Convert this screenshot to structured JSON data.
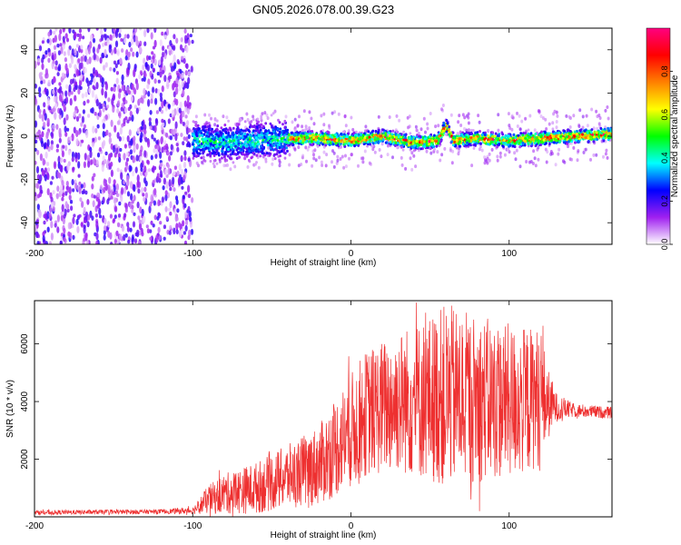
{
  "title": "GN05.2026.078.00.39.G23",
  "colors": {
    "snr_line": "#ee3030",
    "spectral_marks": "#8a2be2"
  },
  "chart_data": [
    {
      "type": "heatmap",
      "title": "GN05.2026.078.00.39.G23",
      "xlabel": "Height of straight line (km)",
      "ylabel": "Frequency (Hz)",
      "xlim": [
        -200,
        165
      ],
      "ylim": [
        -50,
        50
      ],
      "xticks": [
        -200,
        -100,
        0,
        100
      ],
      "yticks": [
        -40,
        -20,
        0,
        20,
        40
      ],
      "colorbar": {
        "label": "Normalized spectral amplitude",
        "range": [
          0.0,
          1.0
        ],
        "ticks": [
          0.0,
          0.2,
          0.4,
          0.6,
          0.8
        ],
        "tick_labels": [
          "0.0",
          "0.2",
          "0.4",
          "0.6",
          "0.8"
        ],
        "colors": [
          "#ffffff",
          "#a020f0",
          "#0000ff",
          "#00ffff",
          "#00ff00",
          "#ffff00",
          "#ff8000",
          "#ff0000",
          "#ff0080"
        ]
      },
      "regions": [
        {
          "x_range": [
            -200,
            -100
          ],
          "pattern": "diffuse noise across all frequencies",
          "amplitude": 0.15
        },
        {
          "x_range": [
            -100,
            -40
          ],
          "center_hz": 0,
          "spread_hz": 8,
          "amplitude": 0.35
        },
        {
          "x_range": [
            -40,
            165
          ],
          "center_hz": 0,
          "spread_hz": 3,
          "amplitude": 0.7
        }
      ],
      "center_curve": {
        "x": [
          -100,
          -80,
          -60,
          -40,
          -20,
          0,
          20,
          40,
          55,
          60,
          65,
          80,
          100,
          120,
          140,
          165
        ],
        "y": [
          -2,
          -3,
          -2,
          -1,
          -1,
          -2,
          0,
          -3,
          -2,
          5,
          -2,
          -1,
          -2,
          -1,
          0,
          1
        ]
      }
    },
    {
      "type": "line",
      "xlabel": "Height of straight line (km)",
      "ylabel": "SNR (10 * v/v)",
      "xlim": [
        -200,
        165
      ],
      "ylim": [
        0,
        7500
      ],
      "xticks": [
        -200,
        -100,
        0,
        100
      ],
      "yticks": [
        2000,
        4000,
        6000
      ],
      "envelope": {
        "x": [
          -200,
          -120,
          -100,
          -90,
          -80,
          -60,
          -40,
          -20,
          -10,
          0,
          10,
          30,
          50,
          60,
          80,
          100,
          110,
          120,
          125,
          130,
          140,
          165
        ],
        "mean": [
          150,
          180,
          220,
          600,
          800,
          1000,
          1400,
          1800,
          2400,
          3000,
          3600,
          4000,
          4100,
          4200,
          4100,
          4000,
          4000,
          4200,
          3900,
          3800,
          3700,
          3600
        ],
        "amp": [
          80,
          80,
          120,
          500,
          700,
          900,
          1100,
          1400,
          1700,
          2000,
          2200,
          2500,
          2900,
          3200,
          2900,
          2700,
          2600,
          2400,
          1200,
          500,
          250,
          200
        ]
      }
    }
  ]
}
